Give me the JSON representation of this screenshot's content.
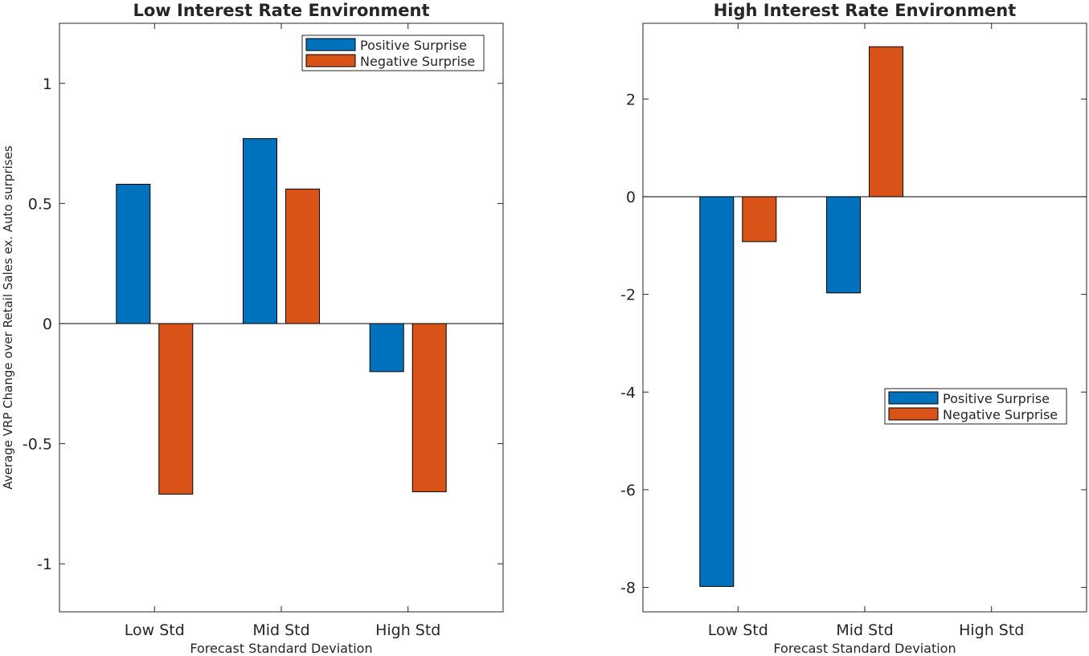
{
  "chart_data": [
    {
      "type": "bar",
      "title": "Low Interest Rate Environment",
      "xlabel": "Forecast Standard Deviation",
      "ylabel": "Average VRP Change over Retail Sales ex. Auto surprises",
      "categories": [
        "Low Std",
        "Mid Std",
        "High Std"
      ],
      "ylim": [
        -1.2,
        1.25
      ],
      "yticks": [
        -1,
        -0.5,
        0,
        0.5,
        1
      ],
      "yticklabels": [
        "-1",
        "-0.5",
        "0",
        "0.5",
        "1"
      ],
      "legend_position": "top-right",
      "series": [
        {
          "name": "Positive Surprise",
          "color": "#0072BD",
          "values": [
            0.58,
            0.77,
            -0.2
          ]
        },
        {
          "name": "Negative Surprise",
          "color": "#D95319",
          "values": [
            -0.71,
            0.56,
            -0.7
          ]
        }
      ]
    },
    {
      "type": "bar",
      "title": "High Interest Rate Environment",
      "xlabel": "Forecast Standard Deviation",
      "ylabel": "",
      "categories": [
        "Low Std",
        "Mid Std",
        "High Std"
      ],
      "ylim": [
        -8.5,
        3.55
      ],
      "yticks": [
        -8,
        -6,
        -4,
        -2,
        0,
        2
      ],
      "yticklabels": [
        "-8",
        "-6",
        "-4",
        "-2",
        "0",
        "2"
      ],
      "legend_position": "middle-right",
      "series": [
        {
          "name": "Positive Surprise",
          "color": "#0072BD",
          "values": [
            -7.98,
            -1.97,
            null
          ]
        },
        {
          "name": "Negative Surprise",
          "color": "#D95319",
          "values": [
            -0.92,
            3.07,
            null
          ]
        }
      ]
    }
  ]
}
